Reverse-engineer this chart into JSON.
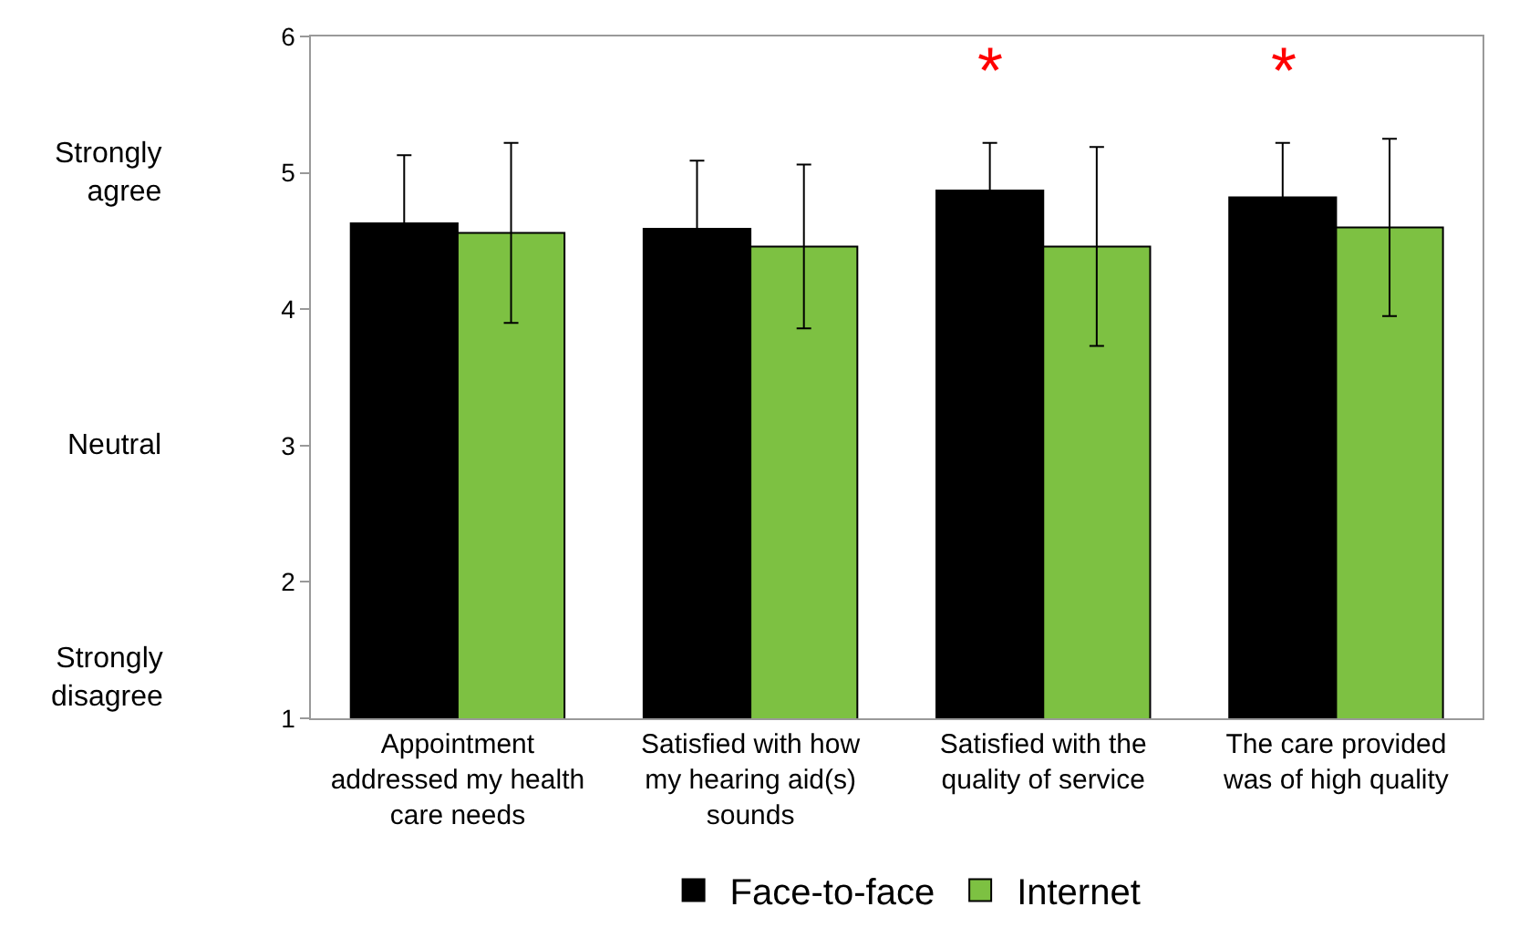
{
  "chart_data": {
    "type": "bar",
    "categories": [
      "Appointment addressed my health care needs",
      "Satisfied with how my hearing aid(s) sounds",
      "Satisfied with the quality of service",
      "The care provided was of high quality"
    ],
    "series": [
      {
        "name": "Face-to-face",
        "color": "#000000",
        "values": [
          4.63,
          4.59,
          4.87,
          4.82
        ],
        "errors": [
          0.5,
          0.5,
          0.35,
          0.4
        ]
      },
      {
        "name": "Internet",
        "color": "#7dc142",
        "values": [
          4.56,
          4.46,
          4.46,
          4.6
        ],
        "errors": [
          0.66,
          0.6,
          0.73,
          0.65
        ]
      }
    ],
    "ylim": [
      1,
      6
    ],
    "yticks": [
      1,
      2,
      3,
      4,
      5,
      6
    ],
    "annotations": [
      "Strongly agree",
      "Neutral",
      "Strongly disagree",
      "*",
      "*"
    ],
    "legend": "bottom"
  }
}
